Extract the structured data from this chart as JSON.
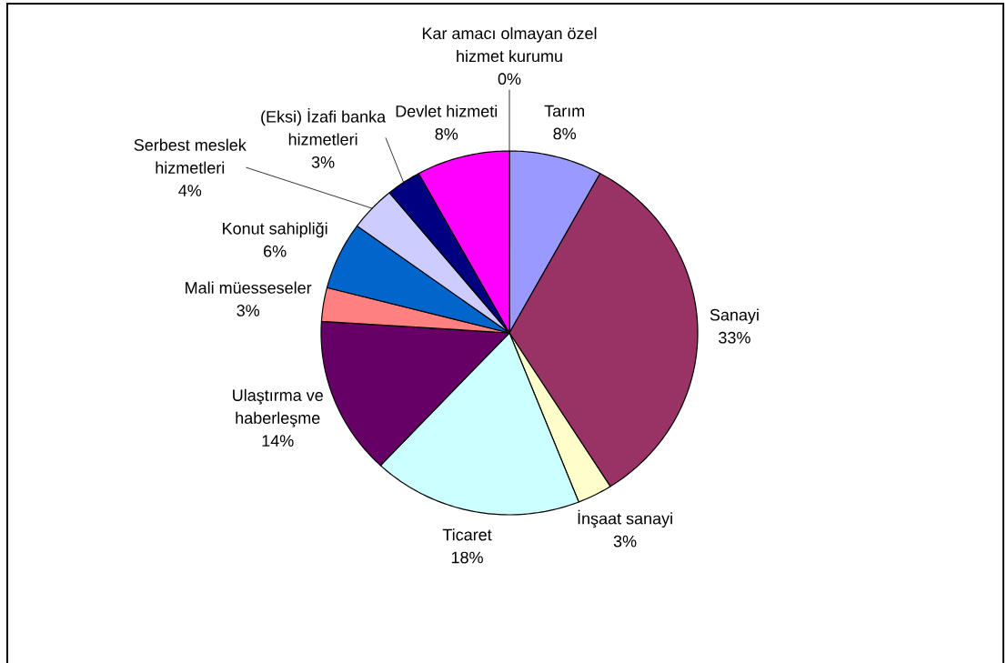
{
  "chart_data": {
    "type": "pie",
    "categories": [
      "Tarım",
      "Sanayi",
      "İnşaat sanayi",
      "Ticaret",
      "Ulaştırma ve haberleşme",
      "Mali müesseseler",
      "Konut sahipliği",
      "Serbest meslek hizmetleri",
      "(Eksi) İzafi banka hizmetleri",
      "Devlet hizmeti",
      "Kar amacı olmayan özel hizmet kurumu"
    ],
    "values": [
      8,
      33,
      3,
      18,
      14,
      3,
      6,
      4,
      3,
      8,
      0
    ],
    "colors": [
      "#9999ff",
      "#993366",
      "#ffffcc",
      "#ccffff",
      "#660066",
      "#ff8080",
      "#0066cc",
      "#ccccff",
      "#000080",
      "#ff00ff",
      null
    ],
    "value_labels": [
      "8%",
      "33%",
      "3%",
      "18%",
      "14%",
      "3%",
      "6%",
      "4%",
      "3%",
      "8%",
      "0%"
    ]
  }
}
